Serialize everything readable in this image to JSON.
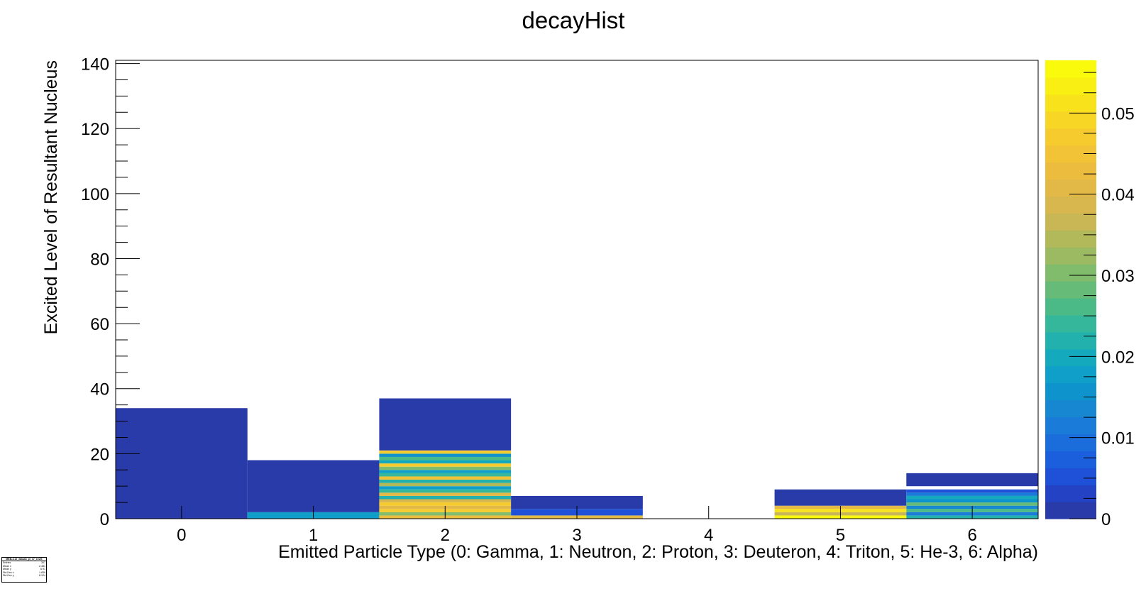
{
  "chart_data": {
    "type": "heatmap",
    "title": "decayHist",
    "xlabel": "Emitted Particle Type (0: Gamma, 1: Neutron, 2: Proton, 3: Deuteron, 4: Triton, 5: He-3, 6: Alpha)",
    "ylabel": "Excited Level of Resultant Nucleus",
    "xlim": [
      -0.5,
      6.5
    ],
    "ylim": [
      0,
      141
    ],
    "xticks": [
      "0",
      "1",
      "2",
      "3",
      "4",
      "5",
      "6"
    ],
    "yticks": [
      "0",
      "20",
      "40",
      "60",
      "80",
      "100",
      "120",
      "140"
    ],
    "zlim": [
      0,
      0.0565
    ],
    "zticks": [
      "0",
      "0.01",
      "0.02",
      "0.03",
      "0.04",
      "0.05"
    ],
    "cells": [
      {
        "x": 0,
        "y0": 0,
        "y1": 34,
        "z": 0.0008
      },
      {
        "x": 1,
        "y0": 0,
        "y1": 2,
        "z": 0.018
      },
      {
        "x": 1,
        "y0": 2,
        "y1": 18,
        "z": 0.0008
      },
      {
        "x": 2,
        "y0": 0,
        "y1": 1,
        "z": 0.042
      },
      {
        "x": 2,
        "y0": 1,
        "y1": 2,
        "z": 0.03
      },
      {
        "x": 2,
        "y0": 2,
        "y1": 3,
        "z": 0.047
      },
      {
        "x": 2,
        "y0": 3,
        "y1": 4,
        "z": 0.04
      },
      {
        "x": 2,
        "y0": 4,
        "y1": 5,
        "z": 0.047
      },
      {
        "x": 2,
        "y0": 5,
        "y1": 6,
        "z": 0.038
      },
      {
        "x": 2,
        "y0": 6,
        "y1": 7,
        "z": 0.022
      },
      {
        "x": 2,
        "y0": 7,
        "y1": 8,
        "z": 0.04
      },
      {
        "x": 2,
        "y0": 8,
        "y1": 9,
        "z": 0.025
      },
      {
        "x": 2,
        "y0": 9,
        "y1": 10,
        "z": 0.018
      },
      {
        "x": 2,
        "y0": 10,
        "y1": 11,
        "z": 0.034
      },
      {
        "x": 2,
        "y0": 11,
        "y1": 12,
        "z": 0.022
      },
      {
        "x": 2,
        "y0": 12,
        "y1": 13,
        "z": 0.046
      },
      {
        "x": 2,
        "y0": 13,
        "y1": 14,
        "z": 0.024
      },
      {
        "x": 2,
        "y0": 14,
        "y1": 15,
        "z": 0.018
      },
      {
        "x": 2,
        "y0": 15,
        "y1": 16,
        "z": 0.03
      },
      {
        "x": 2,
        "y0": 16,
        "y1": 17,
        "z": 0.048
      },
      {
        "x": 2,
        "y0": 17,
        "y1": 18,
        "z": 0.02
      },
      {
        "x": 2,
        "y0": 18,
        "y1": 19,
        "z": 0.027
      },
      {
        "x": 2,
        "y0": 19,
        "y1": 20,
        "z": 0.016
      },
      {
        "x": 2,
        "y0": 20,
        "y1": 21,
        "z": 0.047
      },
      {
        "x": 2,
        "y0": 21,
        "y1": 37,
        "z": 0.0008
      },
      {
        "x": 3,
        "y0": 0,
        "y1": 1,
        "z": 0.04
      },
      {
        "x": 3,
        "y0": 1,
        "y1": 3,
        "z": 0.006
      },
      {
        "x": 3,
        "y0": 3,
        "y1": 7,
        "z": 0.0008
      },
      {
        "x": 5,
        "y0": 0,
        "y1": 1,
        "z": 0.056
      },
      {
        "x": 5,
        "y0": 1,
        "y1": 2,
        "z": 0.036
      },
      {
        "x": 5,
        "y0": 2,
        "y1": 3,
        "z": 0.052
      },
      {
        "x": 5,
        "y0": 3,
        "y1": 4,
        "z": 0.04
      },
      {
        "x": 5,
        "y0": 4,
        "y1": 9,
        "z": 0.0008
      },
      {
        "x": 6,
        "y0": 0,
        "y1": 1,
        "z": 0.022
      },
      {
        "x": 6,
        "y0": 1,
        "y1": 2,
        "z": 0.012
      },
      {
        "x": 6,
        "y0": 2,
        "y1": 3,
        "z": 0.026
      },
      {
        "x": 6,
        "y0": 3,
        "y1": 4,
        "z": 0.014
      },
      {
        "x": 6,
        "y0": 4,
        "y1": 5,
        "z": 0.028
      },
      {
        "x": 6,
        "y0": 5,
        "y1": 6,
        "z": 0.016
      },
      {
        "x": 6,
        "y0": 6,
        "y1": 7,
        "z": 0.02
      },
      {
        "x": 6,
        "y0": 7,
        "y1": 8,
        "z": 0.011
      },
      {
        "x": 6,
        "y0": 8,
        "y1": 9,
        "z": 0.006
      },
      {
        "x": 6,
        "y0": 10,
        "y1": 14,
        "z": 0.0008
      }
    ],
    "palette": [
      "#283ba8",
      "#2343c4",
      "#1f51d8",
      "#1c5fdd",
      "#1b6ddc",
      "#1b7bd8",
      "#1787d1",
      "#0f93cd",
      "#0f9fc8",
      "#15a9be",
      "#22b1ac",
      "#34b79a",
      "#4cba86",
      "#66bb79",
      "#81bb6c",
      "#9bba62",
      "#b2b95a",
      "#c8b754",
      "#d7b74e",
      "#e2b947",
      "#ecbc3f",
      "#f2c237",
      "#f5cb2e",
      "#f7d625",
      "#f8e21b",
      "#f9ef12",
      "#fafa0c"
    ]
  },
  "stats_box": {
    "title": "MEB-C12_data43_pi_x7_ev2G",
    "rows": [
      {
        "label": "Entries",
        "value": "307"
      },
      {
        "label": "Mean x",
        "value": "2.481"
      },
      {
        "label": "Mean y",
        "value": "6.91"
      },
      {
        "label": "Std Dev x",
        "value": "1.839"
      },
      {
        "label": "Std Dev y",
        "value": "8.124"
      }
    ]
  }
}
